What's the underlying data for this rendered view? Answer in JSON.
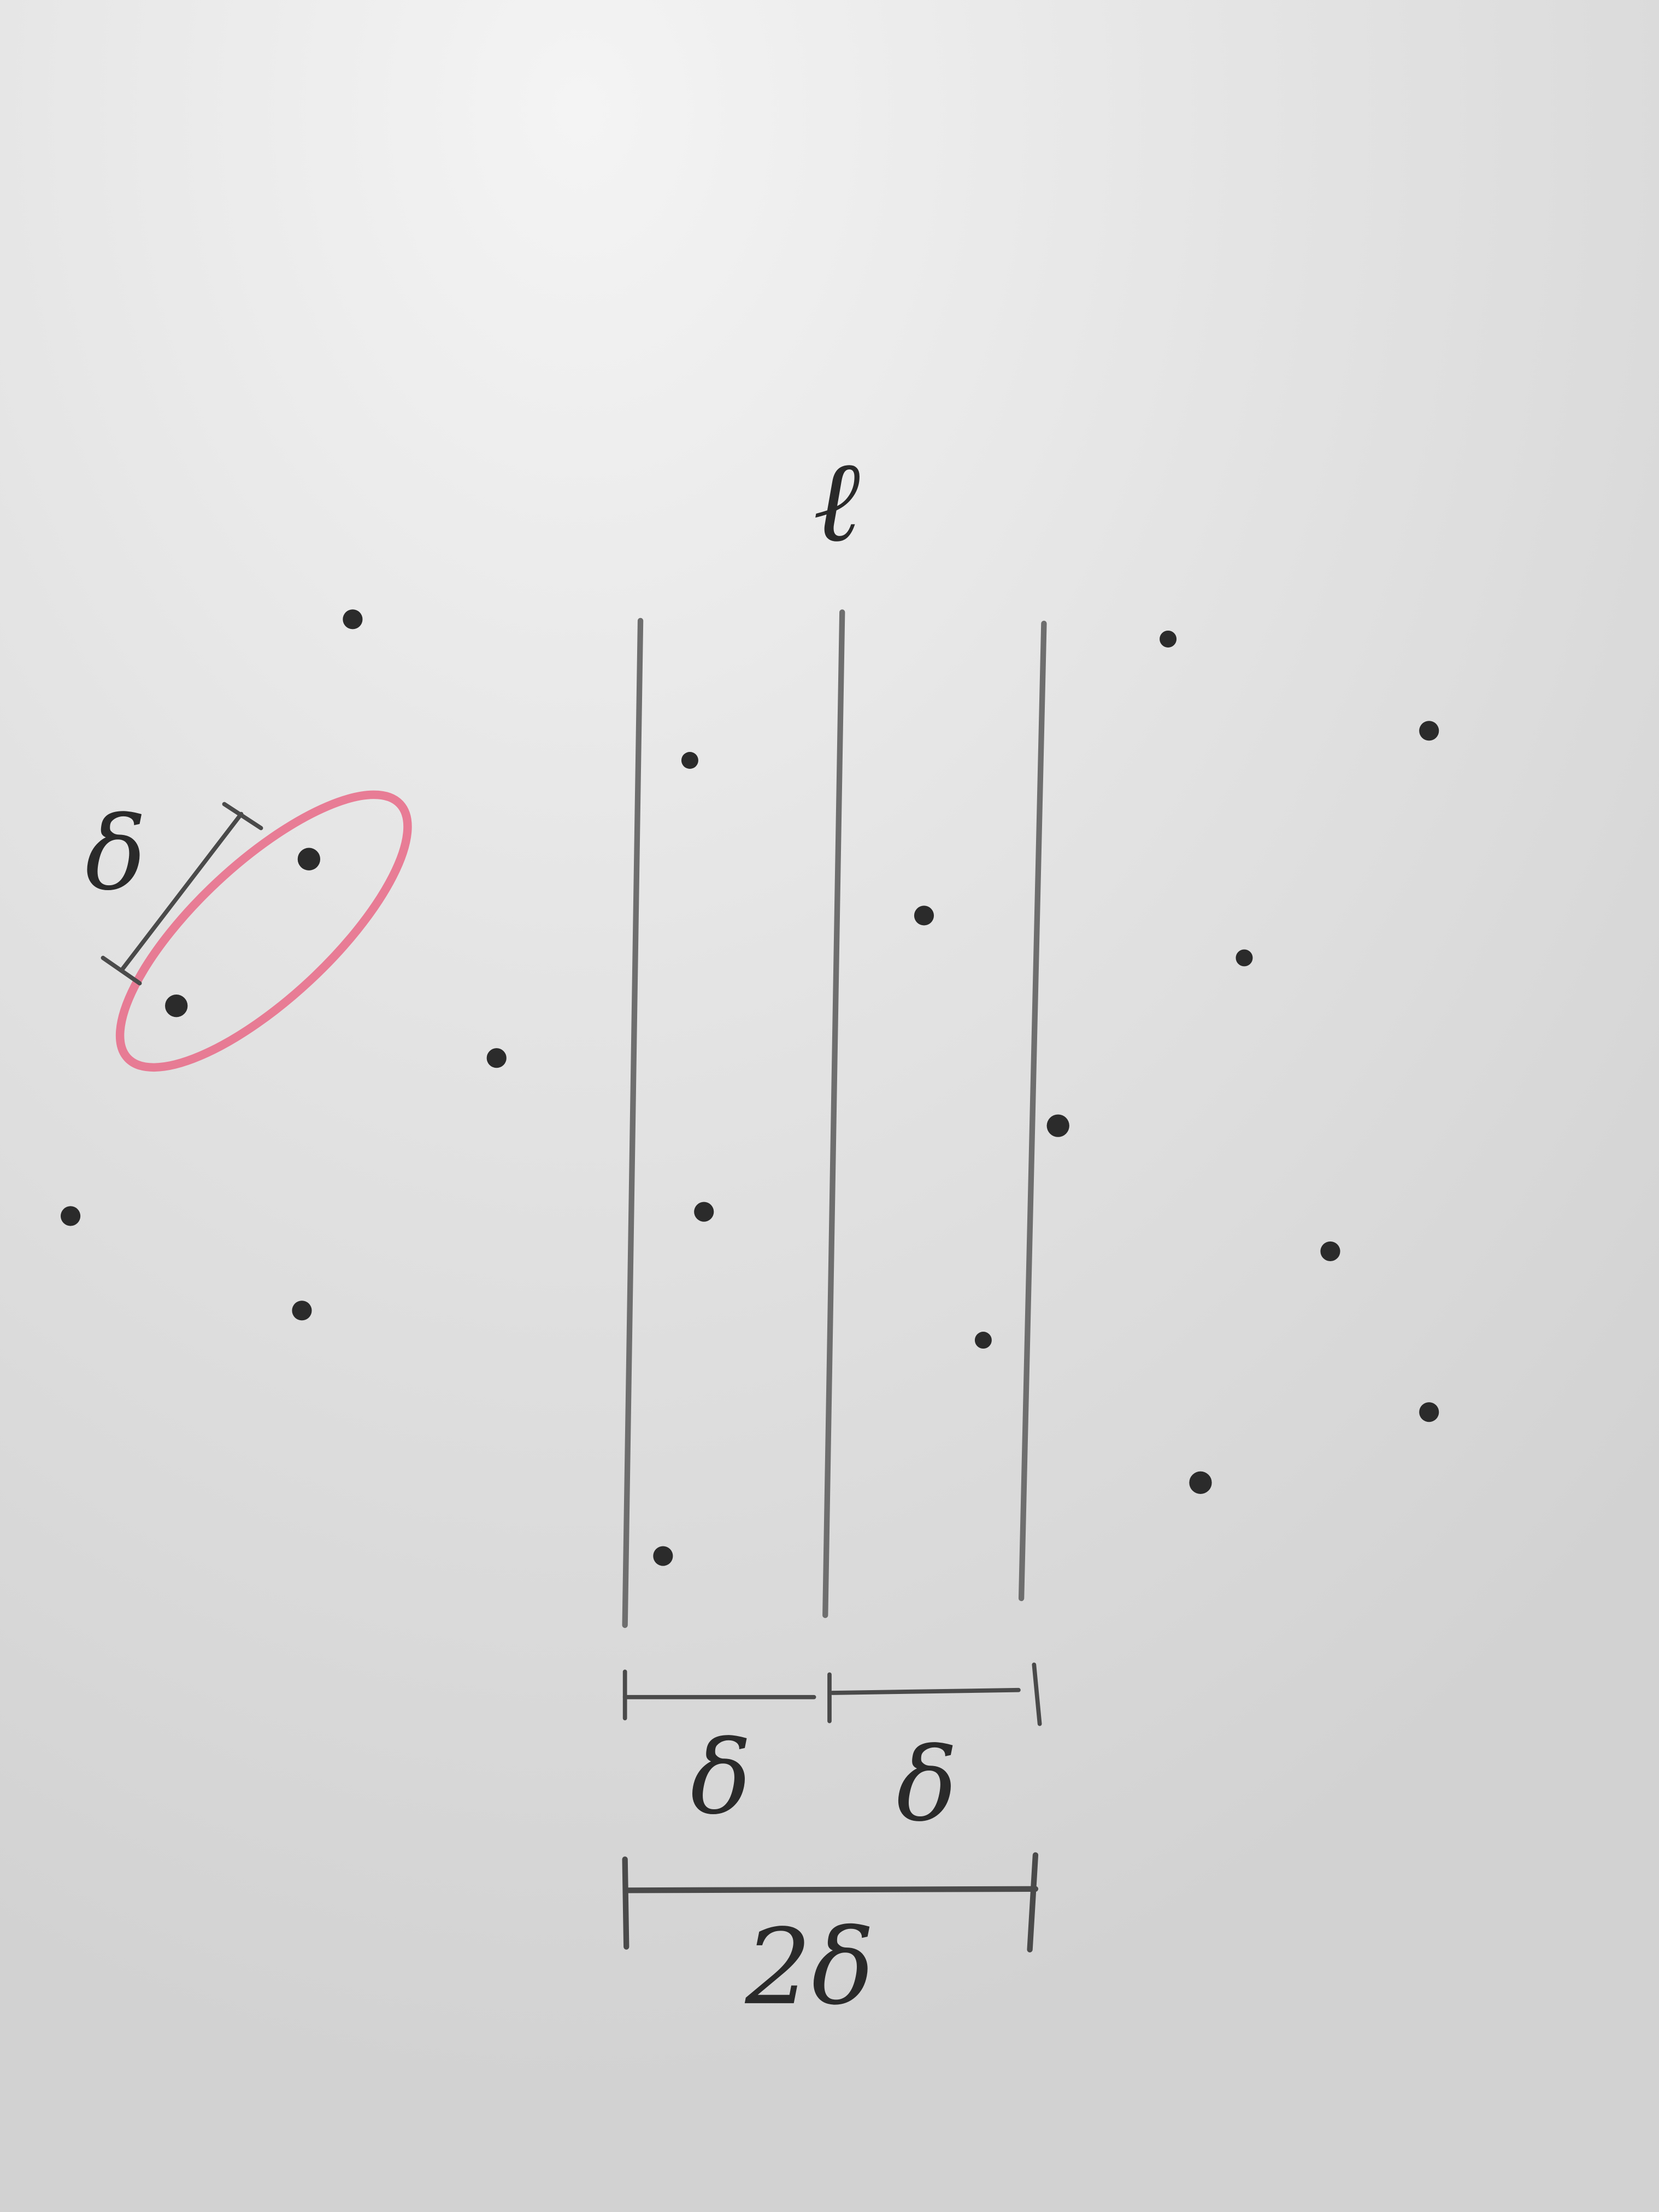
{
  "diagram": {
    "center_label": "ℓ",
    "pair_label": "δ",
    "left_half_label": "δ",
    "right_half_label": "δ",
    "strip_label": "2δ",
    "ink_color": "#2b2b2b",
    "line_color": "#6e6e6e",
    "highlight_color": "#e8708c",
    "board_color": "#dcdcdc"
  }
}
